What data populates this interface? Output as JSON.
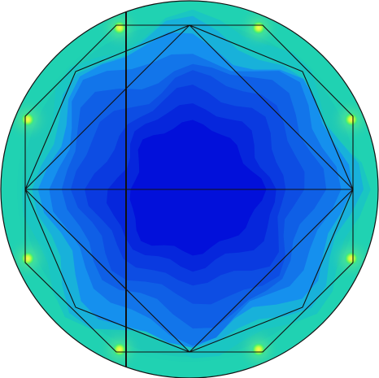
{
  "colors": {
    "background": "#ffffff",
    "outer_ring": "#20d2b2",
    "ring_inner_band": "#1ec9b6",
    "deep_blue": "#0210da",
    "blue_1": "#0626dc",
    "blue_2": "#0a3ae0",
    "blue_3": "#0d4de3",
    "blue_4": "#0f5fe6",
    "blue_5": "#1275ea",
    "blue_6": "#1590ee",
    "cyan_1": "#18b1da",
    "cyan_2": "#1ac6c2",
    "hotspot_green": "#4cf06a",
    "hotspot_yellow": "#d8ff38",
    "outline": "#111111"
  },
  "icons": [
    "concentric-contour-icon",
    "stress-hotspot-icon"
  ]
}
